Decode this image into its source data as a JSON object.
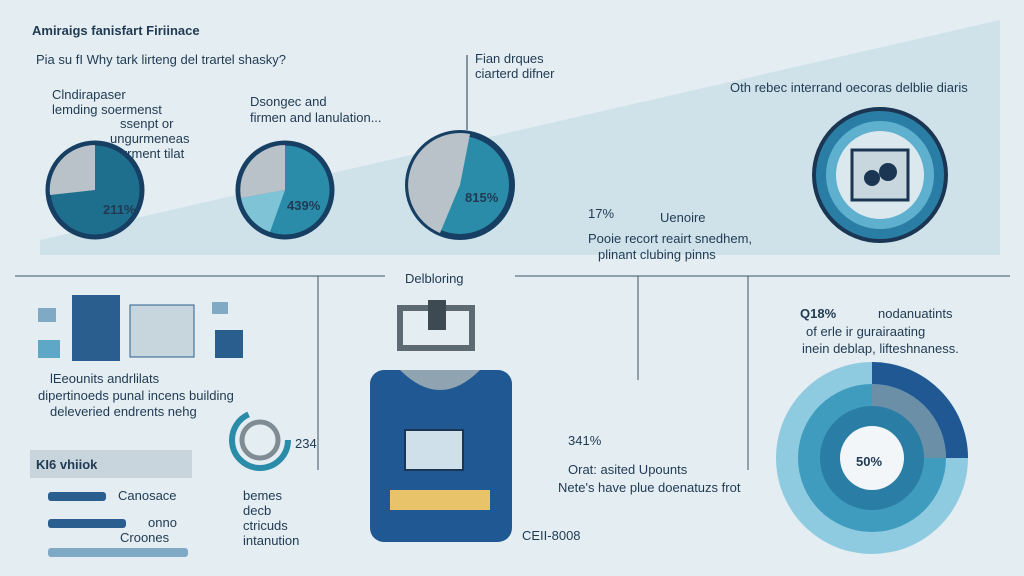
{
  "header": {
    "title": "Amiraigs fanisfart Firiinace",
    "subtitle": "Pia su fI Why tark lirteng del trartel shasky?"
  },
  "pies": [
    {
      "lines": [
        "Clndirapaser",
        "lemding soermenst"
      ],
      "note": [
        "ssenpt or",
        "ungurmeneas",
        "torrment tilat"
      ],
      "label": "211%"
    },
    {
      "lines": [
        "Dsongec and",
        "firmen and lanulation..."
      ],
      "label": "439%"
    },
    {
      "lines": [
        "Fian drques",
        "ciarterd difner"
      ],
      "label": "815%"
    }
  ],
  "stat_top": {
    "value": "17%",
    "unit": "Uenoire",
    "lines": [
      "Pooie recort reairt snedhem,",
      "plinant clubing pinns"
    ]
  },
  "emblem": {
    "caption": "Oth rebec interrand oecoras delblie diaris"
  },
  "section": {
    "title": "Delbloring"
  },
  "left": {
    "lines": [
      "lEeounits andrlilats",
      "dipertinoeds punal incens building",
      "deleveried endrents nehg"
    ],
    "panel": "KI6 vhiiok",
    "bars": [
      "Canosace",
      "onno",
      "Croones"
    ],
    "donut_label": "234",
    "caption": [
      "bemes",
      "decb",
      "ctricuds",
      "intanution"
    ]
  },
  "device": {
    "code": "CEII-8008"
  },
  "stat_mid": {
    "value": "341%",
    "lines": [
      "Orat: asited Upounts",
      "Nete's have plue doenatuzs frot"
    ]
  },
  "stat_right": {
    "value": "Q18%",
    "lines": [
      "nodanuatints",
      "of erle ir gurairaating",
      "inein deblap, lifteshnaness."
    ],
    "center": "50%"
  }
}
